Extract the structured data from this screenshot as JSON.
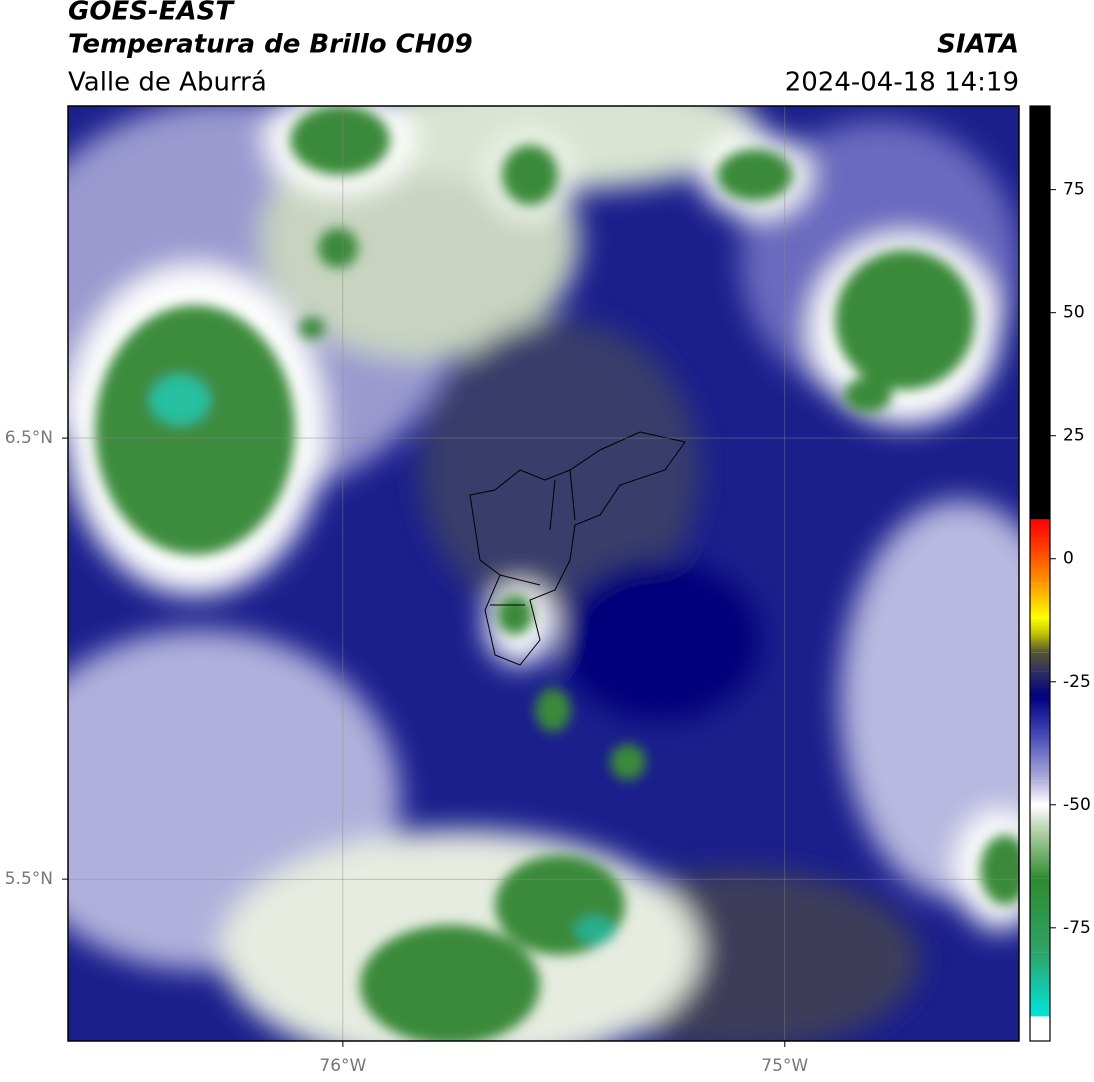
{
  "header": {
    "title": "GOES-EAST",
    "subtitle": "Temperatura de Brillo CH09",
    "source": "SIATA",
    "region": "Valle de Aburrá",
    "datetime": "2024-04-18 14:19"
  },
  "chart_data": {
    "type": "map",
    "xlim": [
      -76.622,
      -74.47
    ],
    "ylim": [
      5.133,
      7.253
    ],
    "xticks": [
      {
        "value": -76,
        "label": "76°W"
      },
      {
        "value": -75,
        "label": "75°W"
      }
    ],
    "yticks": [
      {
        "value": 6.5,
        "label": "6.5°N"
      },
      {
        "value": 5.5,
        "label": "5.5°N"
      }
    ],
    "grid": true,
    "colorbar": {
      "lim": [
        -98,
        92
      ],
      "ticks": [
        -75,
        -50,
        -25,
        0,
        25,
        50,
        75
      ],
      "stops": [
        {
          "value": -98,
          "color": "#ffffff"
        },
        {
          "value": -93,
          "color": "#ffffff"
        },
        {
          "value": -93,
          "color": "#00e5d9"
        },
        {
          "value": -80,
          "color": "#2fa36a"
        },
        {
          "value": -65,
          "color": "#2e8b2e"
        },
        {
          "value": -55,
          "color": "#b8d4b0"
        },
        {
          "value": -50,
          "color": "#ffffff"
        },
        {
          "value": -45,
          "color": "#b0b0dc"
        },
        {
          "value": -35,
          "color": "#3c40b0"
        },
        {
          "value": -28,
          "color": "#000080"
        },
        {
          "value": -23,
          "color": "#2e2e60"
        },
        {
          "value": -19,
          "color": "#555533"
        },
        {
          "value": -15,
          "color": "#c8c800"
        },
        {
          "value": -12,
          "color": "#ffff00"
        },
        {
          "value": -5,
          "color": "#ff9900"
        },
        {
          "value": 3,
          "color": "#ff3300"
        },
        {
          "value": 8,
          "color": "#ff0000"
        },
        {
          "value": 8,
          "color": "#000000"
        },
        {
          "value": 92,
          "color": "#000000"
        }
      ]
    }
  }
}
